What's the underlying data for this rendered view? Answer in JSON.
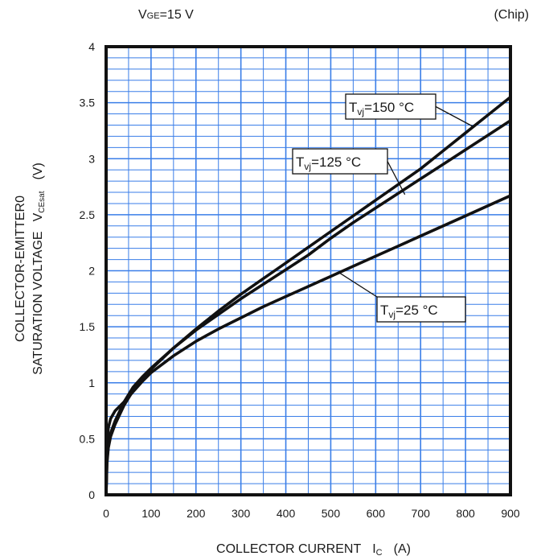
{
  "chart_data": {
    "type": "line",
    "title": "",
    "condition": {
      "main": "V",
      "sub": "GE",
      "rest": "=15 V"
    },
    "note": "(Chip)",
    "xlabel": {
      "text": "COLLECTOR CURRENT",
      "symbol": "I",
      "symbol_sub": "C",
      "unit": "(A)"
    },
    "ylabel": {
      "line1": "COLLECTOR-EMITTER0",
      "line2": "SATURATION VOLTAGE",
      "symbol": "V",
      "symbol_sub": "CEsat",
      "unit": "(V)"
    },
    "xlim": [
      0,
      900
    ],
    "ylim": [
      0,
      4
    ],
    "x_ticks": [
      "0",
      "100",
      "200",
      "300",
      "400",
      "500",
      "600",
      "700",
      "800",
      "900"
    ],
    "y_ticks": [
      "0",
      "0.5",
      "1",
      "1.5",
      "2",
      "2.5",
      "3",
      "3.5",
      "4"
    ],
    "grid": {
      "on": true,
      "x_minor_step": 50,
      "y_minor_step": 0.1,
      "color": "#3a7ee8"
    },
    "series": [
      {
        "name": "Tvj=25 °C",
        "label": {
          "main": "T",
          "sub": "vj",
          "rest": "=25 °C"
        },
        "points": [
          [
            0,
            0
          ],
          [
            2,
            0.45
          ],
          [
            5,
            0.6
          ],
          [
            10,
            0.68
          ],
          [
            20,
            0.75
          ],
          [
            40,
            0.83
          ],
          [
            60,
            0.92
          ],
          [
            80,
            1.01
          ],
          [
            100,
            1.09
          ],
          [
            150,
            1.24
          ],
          [
            200,
            1.37
          ],
          [
            250,
            1.48
          ],
          [
            300,
            1.58
          ],
          [
            350,
            1.68
          ],
          [
            400,
            1.77
          ],
          [
            450,
            1.86
          ],
          [
            500,
            1.95
          ],
          [
            550,
            2.04
          ],
          [
            600,
            2.13
          ],
          [
            650,
            2.22
          ],
          [
            700,
            2.31
          ],
          [
            750,
            2.4
          ],
          [
            800,
            2.49
          ],
          [
            850,
            2.58
          ],
          [
            900,
            2.67
          ]
        ]
      },
      {
        "name": "Tvj=125 °C",
        "label": {
          "main": "T",
          "sub": "vj",
          "rest": "=125 °C"
        },
        "points": [
          [
            0,
            0
          ],
          [
            2,
            0.3
          ],
          [
            5,
            0.45
          ],
          [
            10,
            0.55
          ],
          [
            20,
            0.66
          ],
          [
            40,
            0.83
          ],
          [
            60,
            0.96
          ],
          [
            80,
            1.05
          ],
          [
            100,
            1.13
          ],
          [
            150,
            1.31
          ],
          [
            200,
            1.47
          ],
          [
            250,
            1.61
          ],
          [
            300,
            1.75
          ],
          [
            350,
            1.88
          ],
          [
            400,
            2.01
          ],
          [
            450,
            2.14
          ],
          [
            500,
            2.29
          ],
          [
            550,
            2.43
          ],
          [
            600,
            2.56
          ],
          [
            650,
            2.69
          ],
          [
            700,
            2.82
          ],
          [
            750,
            2.95
          ],
          [
            800,
            3.08
          ],
          [
            850,
            3.21
          ],
          [
            900,
            3.34
          ]
        ]
      },
      {
        "name": "Tvj=150 °C",
        "label": {
          "main": "T",
          "sub": "vj",
          "rest": "=150 °C"
        },
        "points": [
          [
            0,
            0
          ],
          [
            2,
            0.28
          ],
          [
            5,
            0.42
          ],
          [
            10,
            0.52
          ],
          [
            20,
            0.63
          ],
          [
            40,
            0.8
          ],
          [
            60,
            0.93
          ],
          [
            80,
            1.03
          ],
          [
            100,
            1.12
          ],
          [
            150,
            1.31
          ],
          [
            200,
            1.48
          ],
          [
            250,
            1.64
          ],
          [
            300,
            1.79
          ],
          [
            350,
            1.93
          ],
          [
            400,
            2.07
          ],
          [
            450,
            2.21
          ],
          [
            500,
            2.35
          ],
          [
            550,
            2.49
          ],
          [
            600,
            2.63
          ],
          [
            650,
            2.77
          ],
          [
            700,
            2.91
          ],
          [
            750,
            3.07
          ],
          [
            800,
            3.23
          ],
          [
            850,
            3.39
          ],
          [
            900,
            3.55
          ]
        ]
      }
    ],
    "callouts": [
      {
        "series": 2,
        "anchor": [
          820,
          3.28
        ]
      },
      {
        "series": 1,
        "anchor": [
          665,
          2.68
        ]
      },
      {
        "series": 0,
        "anchor": [
          520,
          1.98
        ]
      }
    ]
  }
}
